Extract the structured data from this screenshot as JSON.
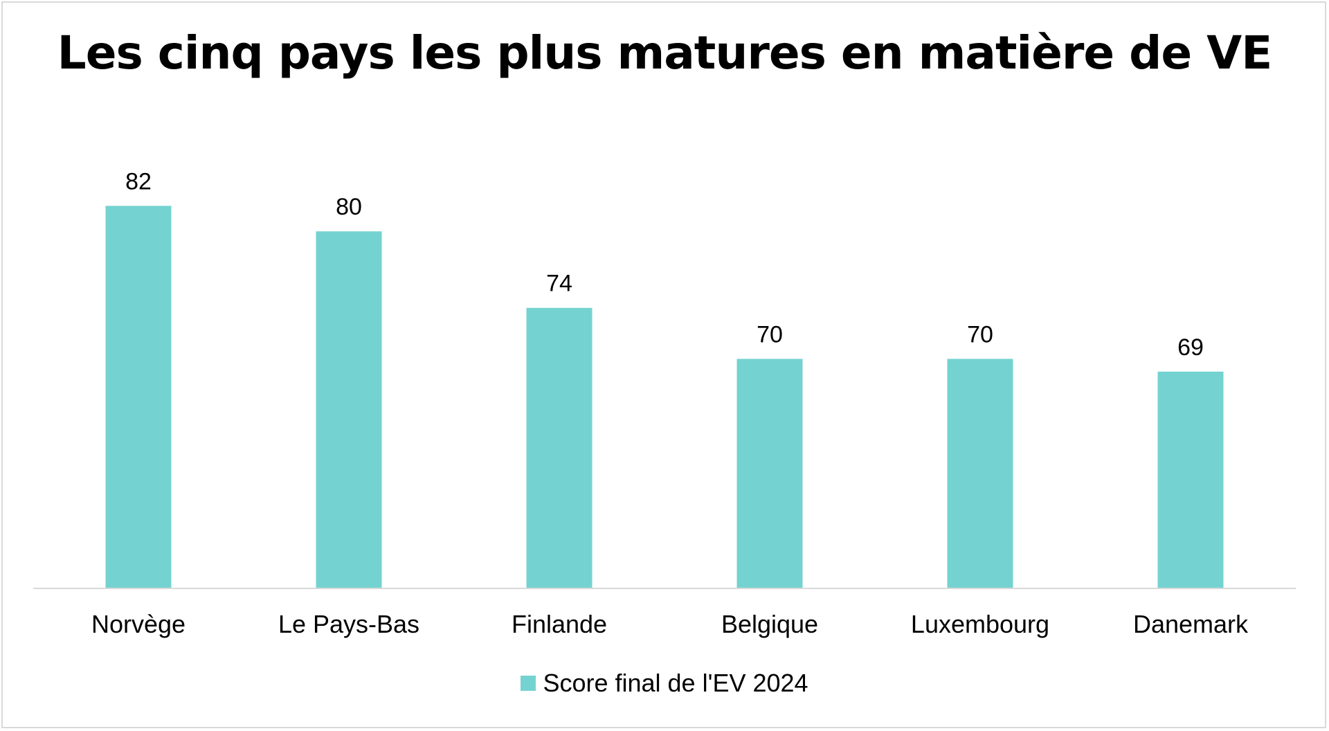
{
  "chart_data": {
    "type": "bar",
    "title": "Les cinq pays les plus matures en matière de VE",
    "categories": [
      "Norvège",
      "Le Pays-Bas",
      "Finlande",
      "Belgique",
      "Luxembourg",
      "Danemark"
    ],
    "series": [
      {
        "name": "Score final de l'EV 2024",
        "values": [
          82,
          80,
          74,
          70,
          70,
          69
        ],
        "color": "#74d3d1"
      }
    ],
    "data_labels": [
      "82",
      "80",
      "74",
      "70",
      "70",
      "69"
    ],
    "ylim": [
      52,
      90
    ],
    "grid": false,
    "legend_position": "bottom",
    "xlabel": "",
    "ylabel": ""
  },
  "colors": {
    "bar": "#74d3d1",
    "axis": "#d9d9d9",
    "text": "#000000"
  }
}
